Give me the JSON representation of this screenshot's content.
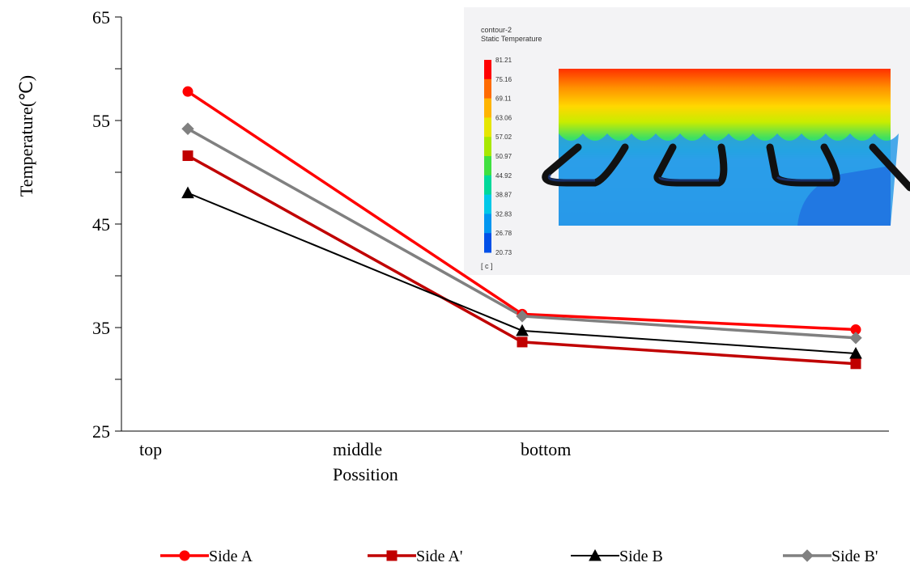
{
  "chart_data": {
    "type": "line",
    "title": "",
    "xlabel": "Possition",
    "ylabel": "Temperature(℃)",
    "ylim": [
      25,
      65
    ],
    "yticks": [
      25,
      35,
      45,
      55,
      65
    ],
    "categories": [
      "top",
      "middle",
      "bottom"
    ],
    "grid": false,
    "legend_position": "bottom",
    "series": [
      {
        "name": "Side A",
        "color": "#ff0000",
        "marker": "circle",
        "values": [
          57.8,
          36.3,
          34.8
        ]
      },
      {
        "name": "Side A'",
        "color": "#c00000",
        "marker": "square",
        "values": [
          51.6,
          33.6,
          31.5
        ]
      },
      {
        "name": "Side B",
        "color": "#000000",
        "marker": "triangle",
        "values": [
          48.0,
          34.7,
          32.5
        ]
      },
      {
        "name": "Side B'",
        "color": "#808080",
        "marker": "diamond",
        "values": [
          54.2,
          36.1,
          34.0
        ]
      }
    ]
  },
  "inset": {
    "title_line1": "contour-2",
    "title_line2": "Static Temperature",
    "unit": "[ c ]",
    "colorbar_values": [
      "81.21",
      "75.16",
      "69.11",
      "63.06",
      "57.02",
      "50.97",
      "44.92",
      "38.87",
      "32.83",
      "26.78",
      "20.73"
    ],
    "colorbar_colors": [
      "#ff0000",
      "#ff6a00",
      "#ffb400",
      "#e6e600",
      "#a8e800",
      "#40e040",
      "#00d89a",
      "#00c8e8",
      "#0096f0",
      "#0050e8",
      "#0000ff"
    ]
  }
}
